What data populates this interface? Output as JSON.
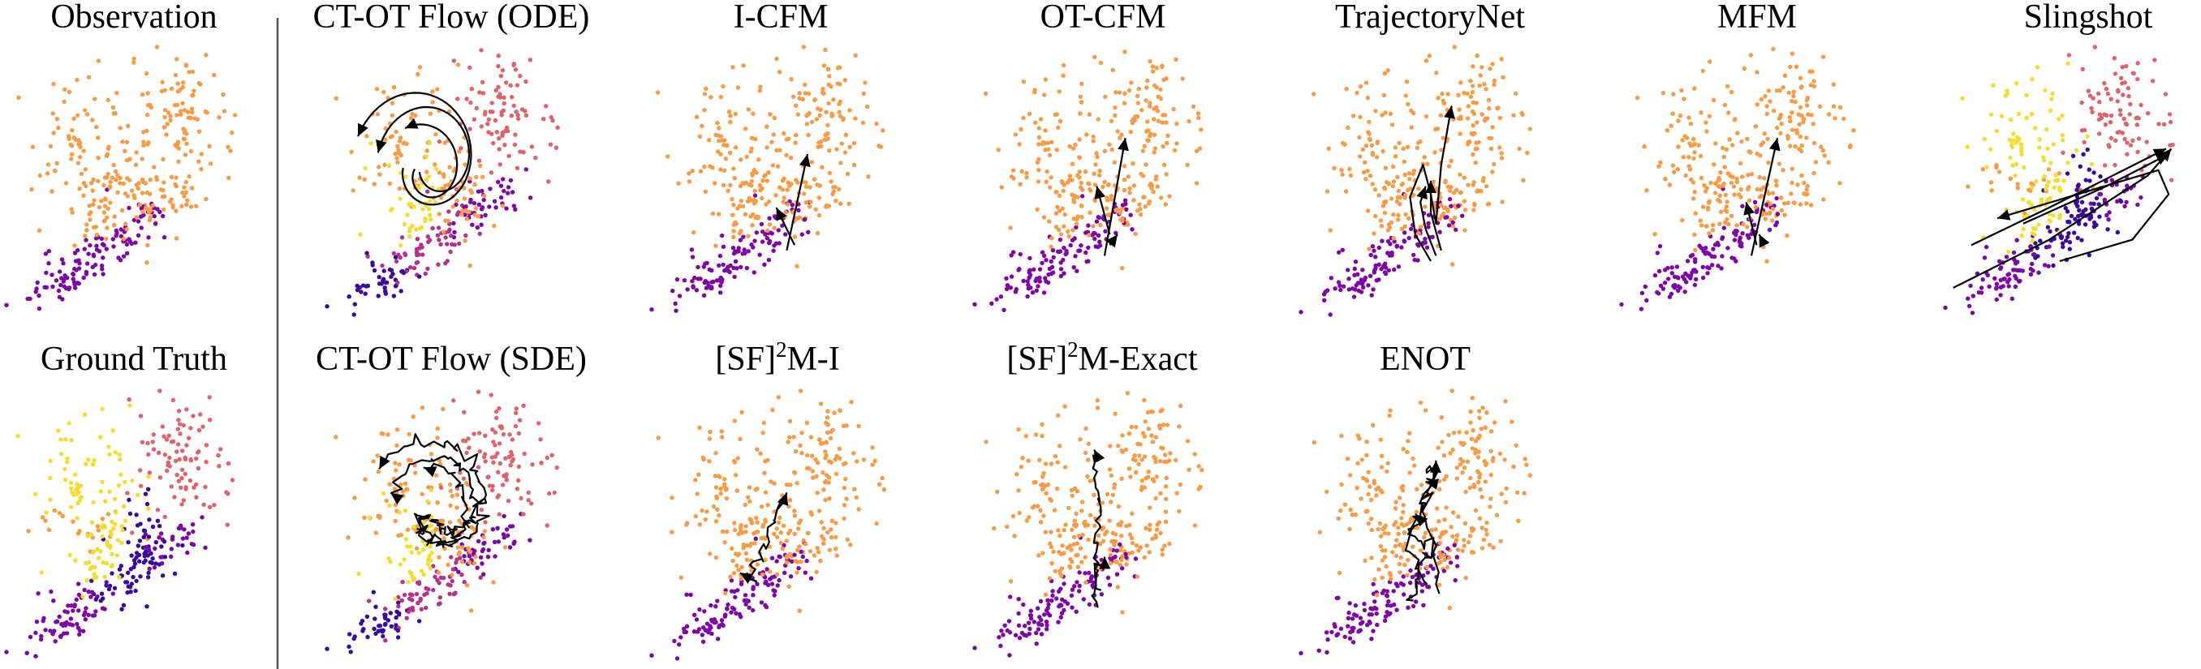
{
  "figure": {
    "divider": true,
    "colors": {
      "purple": "#7e06a6",
      "indigo": "#3b0a9c",
      "orange": "#f99a44",
      "pink": "#e0626b",
      "magenta": "#b4328c",
      "yellow": "#f4dd2e"
    },
    "panels": [
      {
        "id": "observation",
        "title": "Observation",
        "row": 0,
        "col": 0,
        "variant": "observation",
        "traj": "none"
      },
      {
        "id": "ct-ot-ode",
        "title": "CT-OT Flow (ODE)",
        "row": 0,
        "col": 1,
        "variant": "ctode",
        "traj": "spiral"
      },
      {
        "id": "i-cfm",
        "title": "I-CFM",
        "row": 0,
        "col": 2,
        "variant": "obs",
        "traj": "straight"
      },
      {
        "id": "ot-cfm",
        "title": "OT-CFM",
        "row": 0,
        "col": 3,
        "variant": "obs",
        "traj": "straight"
      },
      {
        "id": "trajectorynet",
        "title": "TrajectoryNet",
        "row": 0,
        "col": 4,
        "variant": "obs",
        "traj": "loops"
      },
      {
        "id": "mfm",
        "title": "MFM",
        "row": 0,
        "col": 5,
        "variant": "obs",
        "traj": "straight"
      },
      {
        "id": "slingshot",
        "title": "Slingshot",
        "row": 0,
        "col": 6,
        "variant": "gt",
        "traj": "slingshot"
      },
      {
        "id": "ground-truth",
        "title": "Ground Truth",
        "row": 1,
        "col": 0,
        "variant": "gt",
        "traj": "none"
      },
      {
        "id": "ct-ot-sde",
        "title": "CT-OT Flow (SDE)",
        "row": 1,
        "col": 1,
        "variant": "ctsde",
        "traj": "noisy-spiral"
      },
      {
        "id": "sf2m-i",
        "title_parts": [
          "[SF]",
          "2",
          "M-I"
        ],
        "row": 1,
        "col": 2,
        "variant": "obs",
        "traj": "noisy-up"
      },
      {
        "id": "sf2m-exact",
        "title_parts": [
          "[SF]",
          "2",
          "M-Exact"
        ],
        "row": 1,
        "col": 3,
        "variant": "obs",
        "traj": "noisy-tall"
      },
      {
        "id": "enot",
        "title": "ENOT",
        "row": 1,
        "col": 4,
        "variant": "obs",
        "traj": "jitter"
      }
    ]
  }
}
